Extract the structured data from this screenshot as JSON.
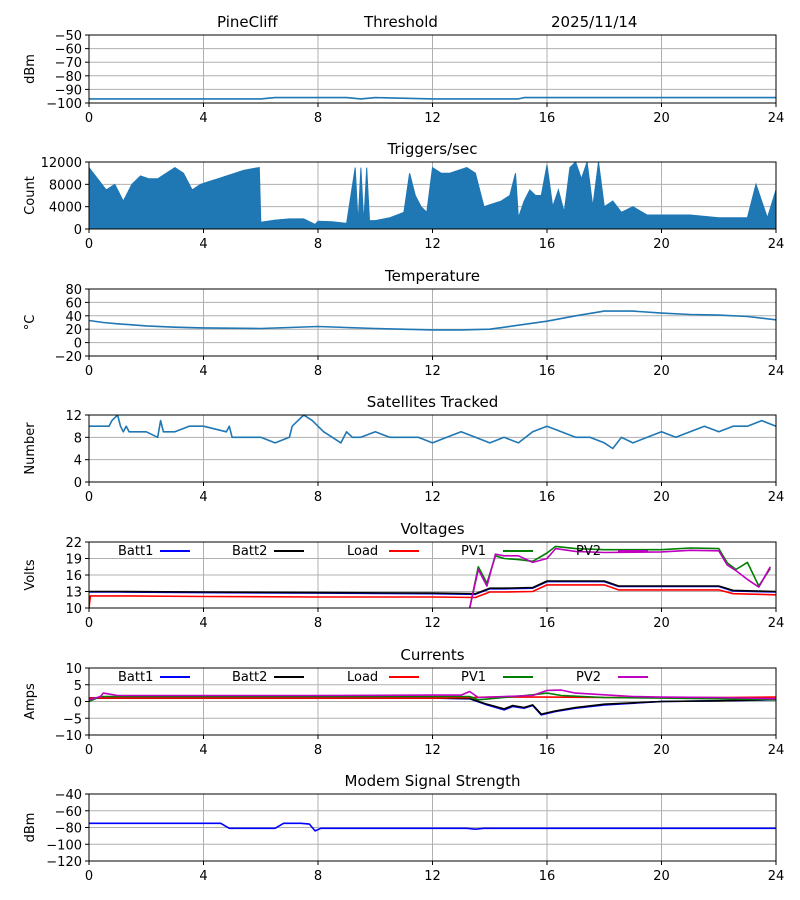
{
  "header": {
    "site": "PineCliff",
    "mode": "Threshold",
    "date": "2025/11/14"
  },
  "chart_data": [
    {
      "id": "rssi",
      "type": "line",
      "title": "",
      "xlabel": "",
      "ylabel": "dBm",
      "xlim": [
        0,
        24
      ],
      "ylim": [
        -100,
        -50
      ],
      "xticks": [
        0,
        4,
        8,
        12,
        16,
        20,
        24
      ],
      "yticks": [
        -100,
        -90,
        -80,
        -70,
        -60,
        -50
      ],
      "series": [
        {
          "name": "dBm",
          "color": "#1f77b4",
          "x": [
            0,
            6,
            6.5,
            9,
            9.5,
            10,
            12,
            15,
            15.2,
            16,
            16.5,
            24
          ],
          "y": [
            -97,
            -97,
            -96,
            -96,
            -97,
            -96,
            -97,
            -97,
            -96,
            -96,
            -96,
            -96
          ]
        }
      ]
    },
    {
      "id": "triggers",
      "type": "area",
      "title": "Triggers/sec",
      "xlabel": "",
      "ylabel": "Count",
      "xlim": [
        0,
        24
      ],
      "ylim": [
        0,
        12000
      ],
      "xticks": [
        0,
        4,
        8,
        12,
        16,
        20,
        24
      ],
      "yticks": [
        0,
        4000,
        8000,
        12000
      ],
      "series": [
        {
          "name": "Count",
          "color": "#1f77b4",
          "x": [
            0,
            0.3,
            0.6,
            0.9,
            1.2,
            1.5,
            1.8,
            2.1,
            2.4,
            2.7,
            3.0,
            3.3,
            3.6,
            3.9,
            4.2,
            4.5,
            4.8,
            5.1,
            5.4,
            5.7,
            5.95,
            6.0,
            6.5,
            7.0,
            7.5,
            7.9,
            8.0,
            8.5,
            9.0,
            9.3,
            9.4,
            9.5,
            9.6,
            9.7,
            9.8,
            10.0,
            10.5,
            11.0,
            11.2,
            11.4,
            11.6,
            11.8,
            12.0,
            12.3,
            12.6,
            12.9,
            13.2,
            13.5,
            13.8,
            14.1,
            14.4,
            14.7,
            14.9,
            15.0,
            15.2,
            15.4,
            15.6,
            15.8,
            16.0,
            16.2,
            16.4,
            16.6,
            16.8,
            17.0,
            17.2,
            17.4,
            17.6,
            17.8,
            18.0,
            18.3,
            18.6,
            19.0,
            19.5,
            20.0,
            21.0,
            22.0,
            23.0,
            23.3,
            23.5,
            23.7,
            24.0
          ],
          "y": [
            11000,
            9000,
            7000,
            8000,
            5000,
            8000,
            9500,
            9000,
            9000,
            10000,
            11000,
            10000,
            7000,
            8000,
            8500,
            9000,
            9500,
            10000,
            10500,
            10800,
            11000,
            1200,
            1600,
            1800,
            1800,
            800,
            1400,
            1300,
            1000,
            11000,
            1000,
            11000,
            1000,
            11000,
            1500,
            1500,
            2000,
            3000,
            10000,
            6000,
            4000,
            3000,
            11000,
            10000,
            10000,
            10500,
            11000,
            10000,
            4000,
            4500,
            5000,
            6000,
            10000,
            2000,
            5000,
            7000,
            6000,
            6000,
            11500,
            4000,
            7000,
            3000,
            11000,
            12000,
            9000,
            12000,
            4000,
            12000,
            4000,
            5000,
            3000,
            4000,
            2500,
            2500,
            2500,
            2000,
            2000,
            8000,
            5000,
            2000,
            7000
          ]
        }
      ]
    },
    {
      "id": "temperature",
      "type": "line",
      "title": "Temperature",
      "xlabel": "",
      "ylabel": "°C",
      "xlim": [
        0,
        24
      ],
      "ylim": [
        -20,
        80
      ],
      "xticks": [
        0,
        4,
        8,
        12,
        16,
        20,
        24
      ],
      "yticks": [
        -20,
        0,
        20,
        40,
        60,
        80
      ],
      "series": [
        {
          "name": "Temperature",
          "color": "#1f77b4",
          "x": [
            0,
            0.5,
            1,
            2,
            3,
            4,
            6,
            8,
            10,
            12,
            13,
            14,
            15,
            16,
            17,
            18,
            19,
            20,
            21,
            22,
            23,
            24
          ],
          "y": [
            33,
            30,
            28,
            25,
            23,
            22,
            21,
            24,
            21,
            19,
            19,
            20,
            26,
            32,
            40,
            47,
            47,
            44,
            42,
            41,
            39,
            34
          ]
        }
      ]
    },
    {
      "id": "satellites",
      "type": "line",
      "title": "Satellites Tracked",
      "xlabel": "",
      "ylabel": "Number",
      "xlim": [
        0,
        24
      ],
      "ylim": [
        0,
        12
      ],
      "xticks": [
        0,
        4,
        8,
        12,
        16,
        20,
        24
      ],
      "yticks": [
        0,
        4,
        8,
        12
      ],
      "series": [
        {
          "name": "Number",
          "color": "#1f77b4",
          "x": [
            0,
            0.7,
            0.8,
            1.0,
            1.1,
            1.2,
            1.3,
            1.4,
            2.0,
            2.4,
            2.5,
            2.6,
            3.0,
            3.5,
            4.0,
            4.8,
            4.9,
            5.0,
            6.0,
            6.5,
            7.0,
            7.1,
            7.3,
            7.5,
            7.8,
            8.0,
            8.2,
            8.5,
            8.8,
            9.0,
            9.2,
            9.5,
            10.0,
            10.5,
            11.0,
            11.5,
            12.0,
            12.5,
            13.0,
            13.5,
            14.0,
            14.5,
            15.0,
            15.5,
            16.0,
            16.5,
            17.0,
            17.5,
            18.0,
            18.3,
            18.6,
            19.0,
            19.5,
            20.0,
            20.5,
            21.0,
            21.5,
            22.0,
            22.5,
            23.0,
            23.5,
            24.0
          ],
          "y": [
            10,
            10,
            11,
            12,
            10,
            9,
            10,
            9,
            9,
            8,
            11,
            9,
            9,
            10,
            10,
            9,
            10,
            8,
            8,
            7,
            8,
            10,
            11,
            12,
            11,
            10,
            9,
            8,
            7,
            9,
            8,
            8,
            9,
            8,
            8,
            8,
            7,
            8,
            9,
            8,
            7,
            8,
            7,
            9,
            10,
            9,
            8,
            8,
            7,
            6,
            8,
            7,
            8,
            9,
            8,
            9,
            10,
            9,
            10,
            10,
            11,
            10
          ]
        }
      ]
    },
    {
      "id": "voltages",
      "type": "line",
      "title": "Voltages",
      "xlabel": "",
      "ylabel": "Volts",
      "xlim": [
        0,
        24
      ],
      "ylim": [
        10,
        22
      ],
      "xticks": [
        0,
        4,
        8,
        12,
        16,
        20,
        24
      ],
      "yticks": [
        10,
        13,
        16,
        19,
        22
      ],
      "legend": "top",
      "series": [
        {
          "name": "Batt1",
          "color": "#0000ff",
          "x": [
            0,
            1,
            4,
            8,
            12,
            13.5,
            14,
            14.5,
            15.5,
            16,
            18,
            18.5,
            22,
            22.5,
            24
          ],
          "y": [
            12.9,
            12.9,
            12.8,
            12.7,
            12.6,
            12.5,
            13.5,
            13.5,
            13.6,
            14.8,
            14.8,
            13.9,
            13.9,
            13.1,
            12.9
          ]
        },
        {
          "name": "Batt2",
          "color": "#000000",
          "x": [
            0,
            1,
            4,
            8,
            12,
            13.5,
            14,
            14.5,
            15.5,
            16,
            18,
            18.5,
            22,
            22.5,
            24
          ],
          "y": [
            13.0,
            13.0,
            12.9,
            12.8,
            12.7,
            12.6,
            13.6,
            13.6,
            13.7,
            14.9,
            14.9,
            14.0,
            14.0,
            13.2,
            13.0
          ]
        },
        {
          "name": "Load",
          "color": "#ff0000",
          "x": [
            0,
            0.05,
            1,
            4,
            8,
            12,
            13.5,
            14,
            14.5,
            15.5,
            16,
            18,
            18.5,
            22,
            22.5,
            24
          ],
          "y": [
            10,
            12.2,
            12.2,
            12.1,
            12.0,
            12.0,
            11.9,
            12.9,
            12.9,
            13.0,
            14.2,
            14.2,
            13.3,
            13.3,
            12.6,
            12.4
          ]
        },
        {
          "name": "PV1",
          "color": "#008000",
          "x": [
            13.3,
            13.6,
            13.9,
            14.2,
            14.5,
            15.0,
            15.5,
            16.0,
            16.3,
            17.0,
            18.0,
            20.0,
            21.0,
            22.0,
            22.3,
            22.6,
            23.0,
            23.4,
            23.8
          ],
          "y": [
            10,
            17.5,
            14.5,
            19.5,
            19.0,
            18.8,
            18.5,
            20.0,
            21.2,
            20.8,
            20.6,
            20.6,
            20.9,
            20.8,
            18.2,
            17.0,
            18.3,
            14.0,
            17.2
          ]
        },
        {
          "name": "PV2",
          "color": "#c000c0",
          "x": [
            13.3,
            13.6,
            13.9,
            14.2,
            14.5,
            15.0,
            15.5,
            16.0,
            16.3,
            17.0,
            18.0,
            20.0,
            21.0,
            22.0,
            22.3,
            22.6,
            23.0,
            23.4,
            23.8
          ],
          "y": [
            10,
            17.0,
            14.0,
            19.8,
            19.5,
            19.5,
            18.3,
            19.0,
            20.8,
            20.3,
            20.1,
            20.2,
            20.5,
            20.4,
            17.8,
            16.8,
            15.2,
            13.8,
            17.5
          ]
        }
      ]
    },
    {
      "id": "currents",
      "type": "line",
      "title": "Currents",
      "xlabel": "",
      "ylabel": "Amps",
      "xlim": [
        0,
        24
      ],
      "ylim": [
        -10,
        10
      ],
      "xticks": [
        0,
        4,
        8,
        12,
        16,
        20,
        24
      ],
      "yticks": [
        -10,
        -5,
        0,
        5,
        10
      ],
      "legend": "top",
      "series": [
        {
          "name": "Batt1",
          "color": "#0000ff",
          "x": [
            0,
            0.5,
            4,
            8,
            12,
            13.3,
            13.9,
            14.5,
            14.8,
            15.2,
            15.5,
            15.8,
            16.3,
            17.0,
            18.0,
            20.0,
            22.0,
            24.0
          ],
          "y": [
            1.0,
            1.0,
            1.0,
            1.0,
            1.0,
            0.8,
            -1.0,
            -2.5,
            -1.5,
            -2.0,
            -1.2,
            -4.0,
            -3.0,
            -2.0,
            -1.0,
            0,
            0.2,
            0.5
          ]
        },
        {
          "name": "Batt2",
          "color": "#000000",
          "x": [
            0,
            0.5,
            4,
            8,
            12,
            13.3,
            13.9,
            14.5,
            14.8,
            15.2,
            15.5,
            15.8,
            16.3,
            17.0,
            18.0,
            20.0,
            22.0,
            24.0
          ],
          "y": [
            1.0,
            1.0,
            1.0,
            1.0,
            1.0,
            0.9,
            -0.8,
            -2.2,
            -1.2,
            -1.8,
            -1.0,
            -3.8,
            -2.8,
            -1.8,
            -0.8,
            0,
            0.2,
            0.6
          ]
        },
        {
          "name": "Load",
          "color": "#ff0000",
          "x": [
            0,
            4,
            8,
            12,
            13.3,
            14,
            16,
            18,
            20,
            22,
            24
          ],
          "y": [
            1.0,
            1.0,
            1.0,
            1.0,
            1.2,
            1.3,
            1.3,
            1.2,
            1.2,
            1.2,
            1.3
          ]
        },
        {
          "name": "PV1",
          "color": "#008000",
          "x": [
            0,
            0.4,
            4,
            8,
            12,
            13.3,
            13.6,
            14.5,
            15.5,
            16.0,
            16.5,
            18.0,
            20.0,
            22.0,
            24.0
          ],
          "y": [
            0,
            1.5,
            1.5,
            1.5,
            1.5,
            1.5,
            0.5,
            1.2,
            2.0,
            2.5,
            1.8,
            1.2,
            1.0,
            0.8,
            0.5
          ]
        },
        {
          "name": "PV2",
          "color": "#c000c0",
          "x": [
            0,
            0.4,
            0.5,
            1.0,
            4,
            8,
            12,
            13.0,
            13.3,
            13.6,
            14.5,
            15.5,
            16.0,
            16.5,
            17.0,
            18.0,
            19.0,
            20.0,
            22.0,
            24.0
          ],
          "y": [
            0.5,
            1.5,
            2.5,
            1.8,
            1.8,
            1.8,
            1.9,
            1.9,
            3.0,
            1.2,
            1.5,
            1.8,
            3.3,
            3.4,
            2.5,
            2.0,
            1.5,
            1.3,
            1.2,
            0.8
          ]
        }
      ]
    },
    {
      "id": "modem",
      "type": "line",
      "title": "Modem Signal Strength",
      "xlabel": "",
      "ylabel": "dBm",
      "xlim": [
        0,
        24
      ],
      "ylim": [
        -120,
        -40
      ],
      "xticks": [
        0,
        4,
        8,
        12,
        16,
        20,
        24
      ],
      "yticks": [
        -120,
        -100,
        -80,
        -60,
        -40
      ],
      "series": [
        {
          "name": "dBm",
          "color": "#0000ff",
          "x": [
            0,
            4.6,
            4.9,
            6.5,
            6.8,
            7.4,
            7.7,
            7.9,
            8.1,
            13.2,
            13.5,
            13.8,
            24
          ],
          "y": [
            -75,
            -75,
            -81,
            -81,
            -75,
            -75,
            -76,
            -84,
            -81,
            -81,
            -82,
            -81,
            -81
          ]
        }
      ]
    }
  ]
}
